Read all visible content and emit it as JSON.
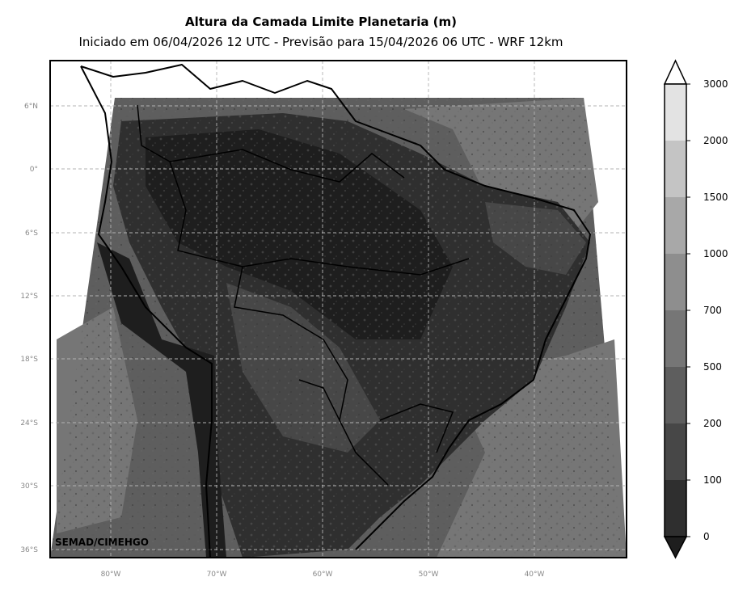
{
  "title": "Altura da Camada Limite Planetaria (m)",
  "subtitle": "Iniciado em 06/04/2026 12 UTC - Previsão para 15/04/2026 06 UTC - WRF 12km",
  "credit": "SEMAD/CIMEHGO",
  "lat_ticks": [
    "6°N",
    "0°",
    "6°S",
    "12°S",
    "18°S",
    "24°S",
    "30°S",
    "36°S"
  ],
  "lon_ticks": [
    "80°W",
    "70°W",
    "60°W",
    "50°W",
    "40°W"
  ],
  "colorbar": {
    "levels": [
      "0",
      "100",
      "200",
      "500",
      "700",
      "1000",
      "1500",
      "2000",
      "3000"
    ],
    "colors": [
      "#1e1e1e",
      "#2f2f2f",
      "#474747",
      "#5e5e5e",
      "#767676",
      "#8e8e8e",
      "#a8a8a8",
      "#c4c4c4",
      "#e3e3e3"
    ],
    "extend": "both"
  }
}
